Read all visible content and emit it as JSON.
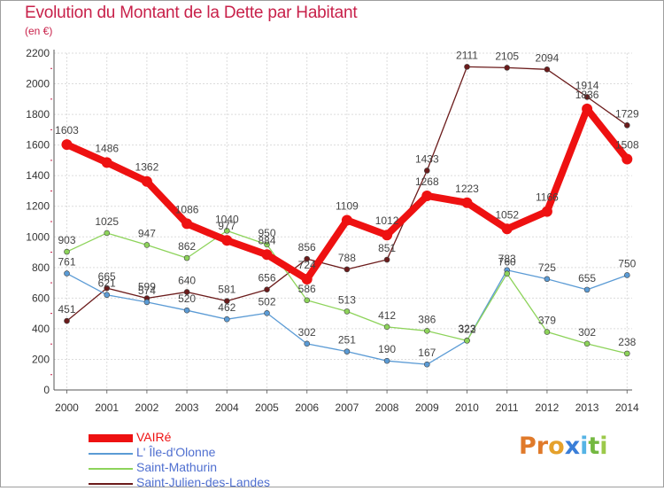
{
  "header": {
    "title": "Evolution du Montant de la Dette par Habitant",
    "unit": "(en €)"
  },
  "brand": {
    "text": "Proxiti",
    "letters": [
      "P",
      "r",
      "o",
      "x",
      "i",
      "t",
      "i"
    ],
    "colors": [
      "#e07a2a",
      "#e07a2a",
      "#e5a12b",
      "#3a7ed8",
      "#56b4e5",
      "#74b841",
      "#9cc94a"
    ]
  },
  "chart_data": {
    "type": "line",
    "x": [
      2000,
      2001,
      2002,
      2003,
      2004,
      2005,
      2006,
      2007,
      2008,
      2009,
      2010,
      2011,
      2012,
      2013,
      2014
    ],
    "xlabel": "",
    "ylabel": "",
    "ylim": [
      0,
      2200
    ],
    "yticks": [
      0,
      200,
      400,
      600,
      800,
      1000,
      1200,
      1400,
      1600,
      1800,
      2000,
      2200
    ],
    "grid": true,
    "legend_position": "bottom-left",
    "series": [
      {
        "name": "Saint-Julien-des-Landes",
        "color": "#6b1b1b",
        "values": [
          451,
          665,
          599,
          640,
          581,
          656,
          856,
          788,
          851,
          1433,
          2111,
          2105,
          2094,
          1914,
          1729
        ]
      },
      {
        "name": "L' Île-d'Olonne",
        "color": "#5b9bd5",
        "values": [
          761,
          621,
          574,
          520,
          462,
          502,
          302,
          251,
          190,
          167,
          323,
          783,
          725,
          655,
          750
        ]
      },
      {
        "name": "Saint-Mathurin",
        "color": "#8dd35a",
        "values": [
          903,
          1025,
          947,
          862,
          1040,
          950,
          586,
          513,
          412,
          386,
          322,
          760,
          379,
          302,
          238
        ]
      },
      {
        "name": "VAIRé",
        "color": "#ee1111",
        "values": [
          1603,
          1486,
          1362,
          1086,
          977,
          884,
          724,
          1109,
          1012,
          1268,
          1223,
          1052,
          1166,
          1836,
          1508
        ]
      }
    ],
    "legend_order": [
      "VAIRé",
      "L' Île-d'Olonne",
      "Saint-Mathurin",
      "Saint-Julien-des-Landes"
    ]
  }
}
